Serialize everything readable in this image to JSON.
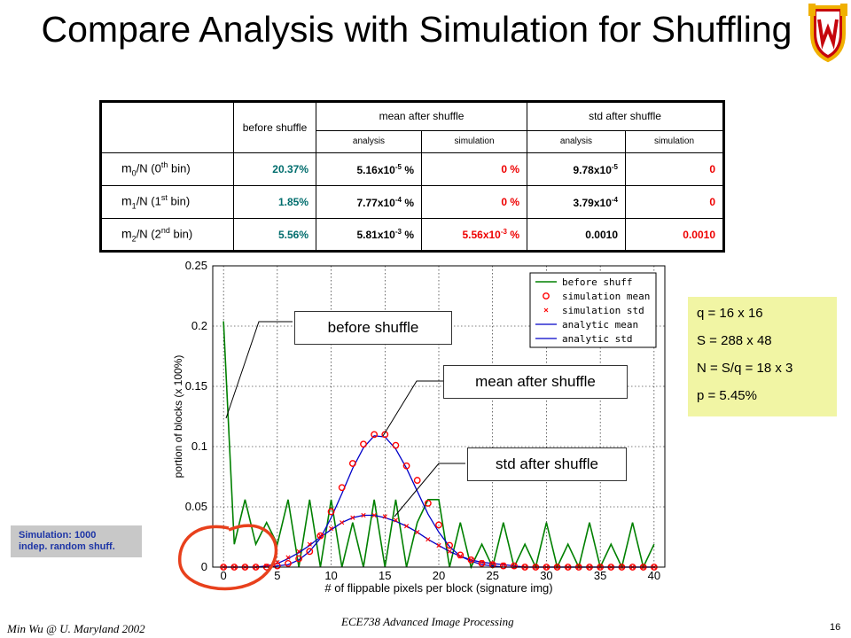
{
  "slide": {
    "title": "Compare Analysis with Simulation for Shuffling",
    "footer_left": "Min Wu @ U. Maryland 2002",
    "footer_center": "ECE738 Advanced Image Processing",
    "page_number": "16"
  },
  "table": {
    "header_before": "before shuffle",
    "header_mean": "mean after shuffle",
    "header_std": "std after shuffle",
    "sub_analysis": "analysis",
    "sub_simulation": "simulation",
    "rows": [
      {
        "label_m": "m",
        "label_sub": "0",
        "label_mid": "/N (0",
        "label_sup": "th",
        "label_end": " bin)",
        "before": "20.37%",
        "mean_analysis_base": "5.16x10",
        "mean_analysis_exp": "-5",
        "mean_analysis_unit": " %",
        "mean_simulation": "0 %",
        "std_analysis_base": "9.78x10",
        "std_analysis_exp": "-5",
        "std_analysis_unit": "",
        "std_simulation": "0"
      },
      {
        "label_m": "m",
        "label_sub": "1",
        "label_mid": "/N (1",
        "label_sup": "st",
        "label_end": " bin)",
        "before": "1.85%",
        "mean_analysis_base": "7.77x10",
        "mean_analysis_exp": "-4",
        "mean_analysis_unit": " %",
        "mean_simulation": "0 %",
        "std_analysis_base": "3.79x10",
        "std_analysis_exp": "-4",
        "std_analysis_unit": "",
        "std_simulation": "0"
      },
      {
        "label_m": "m",
        "label_sub": "2",
        "label_mid": "/N (2",
        "label_sup": "nd",
        "label_end": " bin)",
        "before": "5.56%",
        "mean_analysis_base": "5.81x10",
        "mean_analysis_exp": "-3",
        "mean_analysis_unit": " %",
        "mean_simulation_base": "5.56x10",
        "mean_simulation_exp": "-3",
        "mean_simulation_unit": " %",
        "std_analysis": "0.0010",
        "std_simulation": "0.0010"
      }
    ]
  },
  "callouts": {
    "before": "before shuffle",
    "mean": "mean after shuffle",
    "std": "std after shuffle"
  },
  "params": [
    "q = 16 x 16",
    "S = 288 x 48",
    "N = S/q = 18 x 3",
    "p = 5.45%"
  ],
  "sim_note": [
    "Simulation: 1000",
    "indep. random shuff."
  ],
  "colors": {
    "before": "#008000",
    "sim_mean": "#ff0000",
    "sim_std": "#ff0000",
    "analytic": "#0000c8",
    "params_bg": "#f1f5a4",
    "annotation": "#e8401c"
  },
  "chart_data": {
    "type": "line",
    "xlabel": "# of flippable pixels per block (signature img)",
    "ylabel": "portion of blocks (x 100%)",
    "xlim": [
      -1,
      41
    ],
    "ylim": [
      0,
      0.25
    ],
    "xticks": [
      "0",
      "5",
      "10",
      "15",
      "20",
      "25",
      "30",
      "35",
      "40"
    ],
    "yticks": [
      "0",
      "0.05",
      "0.1",
      "0.15",
      "0.2",
      "0.25"
    ],
    "grid": true,
    "legend": {
      "position": "top-right",
      "entries": [
        "before shuff",
        "simulation mean",
        "simulation std",
        "analytic mean",
        "analytic std"
      ]
    },
    "x": [
      0,
      1,
      2,
      3,
      4,
      5,
      6,
      7,
      8,
      9,
      10,
      11,
      12,
      13,
      14,
      15,
      16,
      17,
      18,
      19,
      20,
      21,
      22,
      23,
      24,
      25,
      26,
      27,
      28,
      29,
      30,
      31,
      32,
      33,
      34,
      35,
      36,
      37,
      38,
      39,
      40
    ],
    "series": [
      {
        "name": "before shuff",
        "values": [
          0.204,
          0.019,
          0.056,
          0.019,
          0.037,
          0.019,
          0.056,
          0.0,
          0.056,
          0.0,
          0.056,
          0.0,
          0.037,
          0.0,
          0.056,
          0.0,
          0.056,
          0.0,
          0.037,
          0.056,
          0.056,
          0.0,
          0.037,
          0.0,
          0.019,
          0.0,
          0.037,
          0.0,
          0.019,
          0.0,
          0.037,
          0.0,
          0.019,
          0.0,
          0.037,
          0.0,
          0.019,
          0.0,
          0.037,
          0.0,
          0.019
        ]
      },
      {
        "name": "simulation mean",
        "values": [
          0.0,
          0.0,
          0.0,
          0.0,
          0.0,
          0.001,
          0.003,
          0.007,
          0.013,
          0.026,
          0.046,
          0.066,
          0.086,
          0.102,
          0.11,
          0.11,
          0.101,
          0.084,
          0.072,
          0.053,
          0.035,
          0.018,
          0.01,
          0.006,
          0.003,
          0.002,
          0.001,
          0.001,
          0.0,
          0.0,
          0.0,
          0.0,
          0.0,
          0.0,
          0.0,
          0.0,
          0.0,
          0.0,
          0.0,
          0.0,
          0.0
        ]
      },
      {
        "name": "simulation std",
        "values": [
          0.0,
          0.0,
          0.0,
          0.0,
          0.001,
          0.004,
          0.008,
          0.013,
          0.019,
          0.026,
          0.032,
          0.037,
          0.041,
          0.043,
          0.043,
          0.042,
          0.039,
          0.034,
          0.029,
          0.023,
          0.018,
          0.013,
          0.009,
          0.006,
          0.004,
          0.003,
          0.002,
          0.001,
          0.0,
          0.0,
          0.0,
          0.0,
          0.0,
          0.0,
          0.0,
          0.0,
          0.0,
          0.0,
          0.0,
          0.0,
          0.0
        ]
      },
      {
        "name": "analytic mean",
        "values": [
          0.0,
          0.0,
          0.0,
          0.0,
          0.0,
          0.001,
          0.002,
          0.006,
          0.013,
          0.024,
          0.041,
          0.061,
          0.082,
          0.099,
          0.109,
          0.108,
          0.098,
          0.082,
          0.063,
          0.044,
          0.029,
          0.017,
          0.009,
          0.005,
          0.002,
          0.001,
          0.0,
          0.0,
          0.0,
          0.0,
          0.0,
          0.0,
          0.0,
          0.0,
          0.0,
          0.0,
          0.0,
          0.0,
          0.0,
          0.0,
          0.0
        ]
      },
      {
        "name": "analytic std",
        "values": [
          0.0,
          0.0,
          0.0,
          0.0,
          0.001,
          0.003,
          0.007,
          0.012,
          0.018,
          0.025,
          0.031,
          0.037,
          0.041,
          0.043,
          0.043,
          0.041,
          0.038,
          0.034,
          0.029,
          0.023,
          0.018,
          0.013,
          0.009,
          0.006,
          0.004,
          0.003,
          0.002,
          0.001,
          0.0,
          0.0,
          0.0,
          0.0,
          0.0,
          0.0,
          0.0,
          0.0,
          0.0,
          0.0,
          0.0,
          0.0,
          0.0
        ]
      }
    ]
  }
}
